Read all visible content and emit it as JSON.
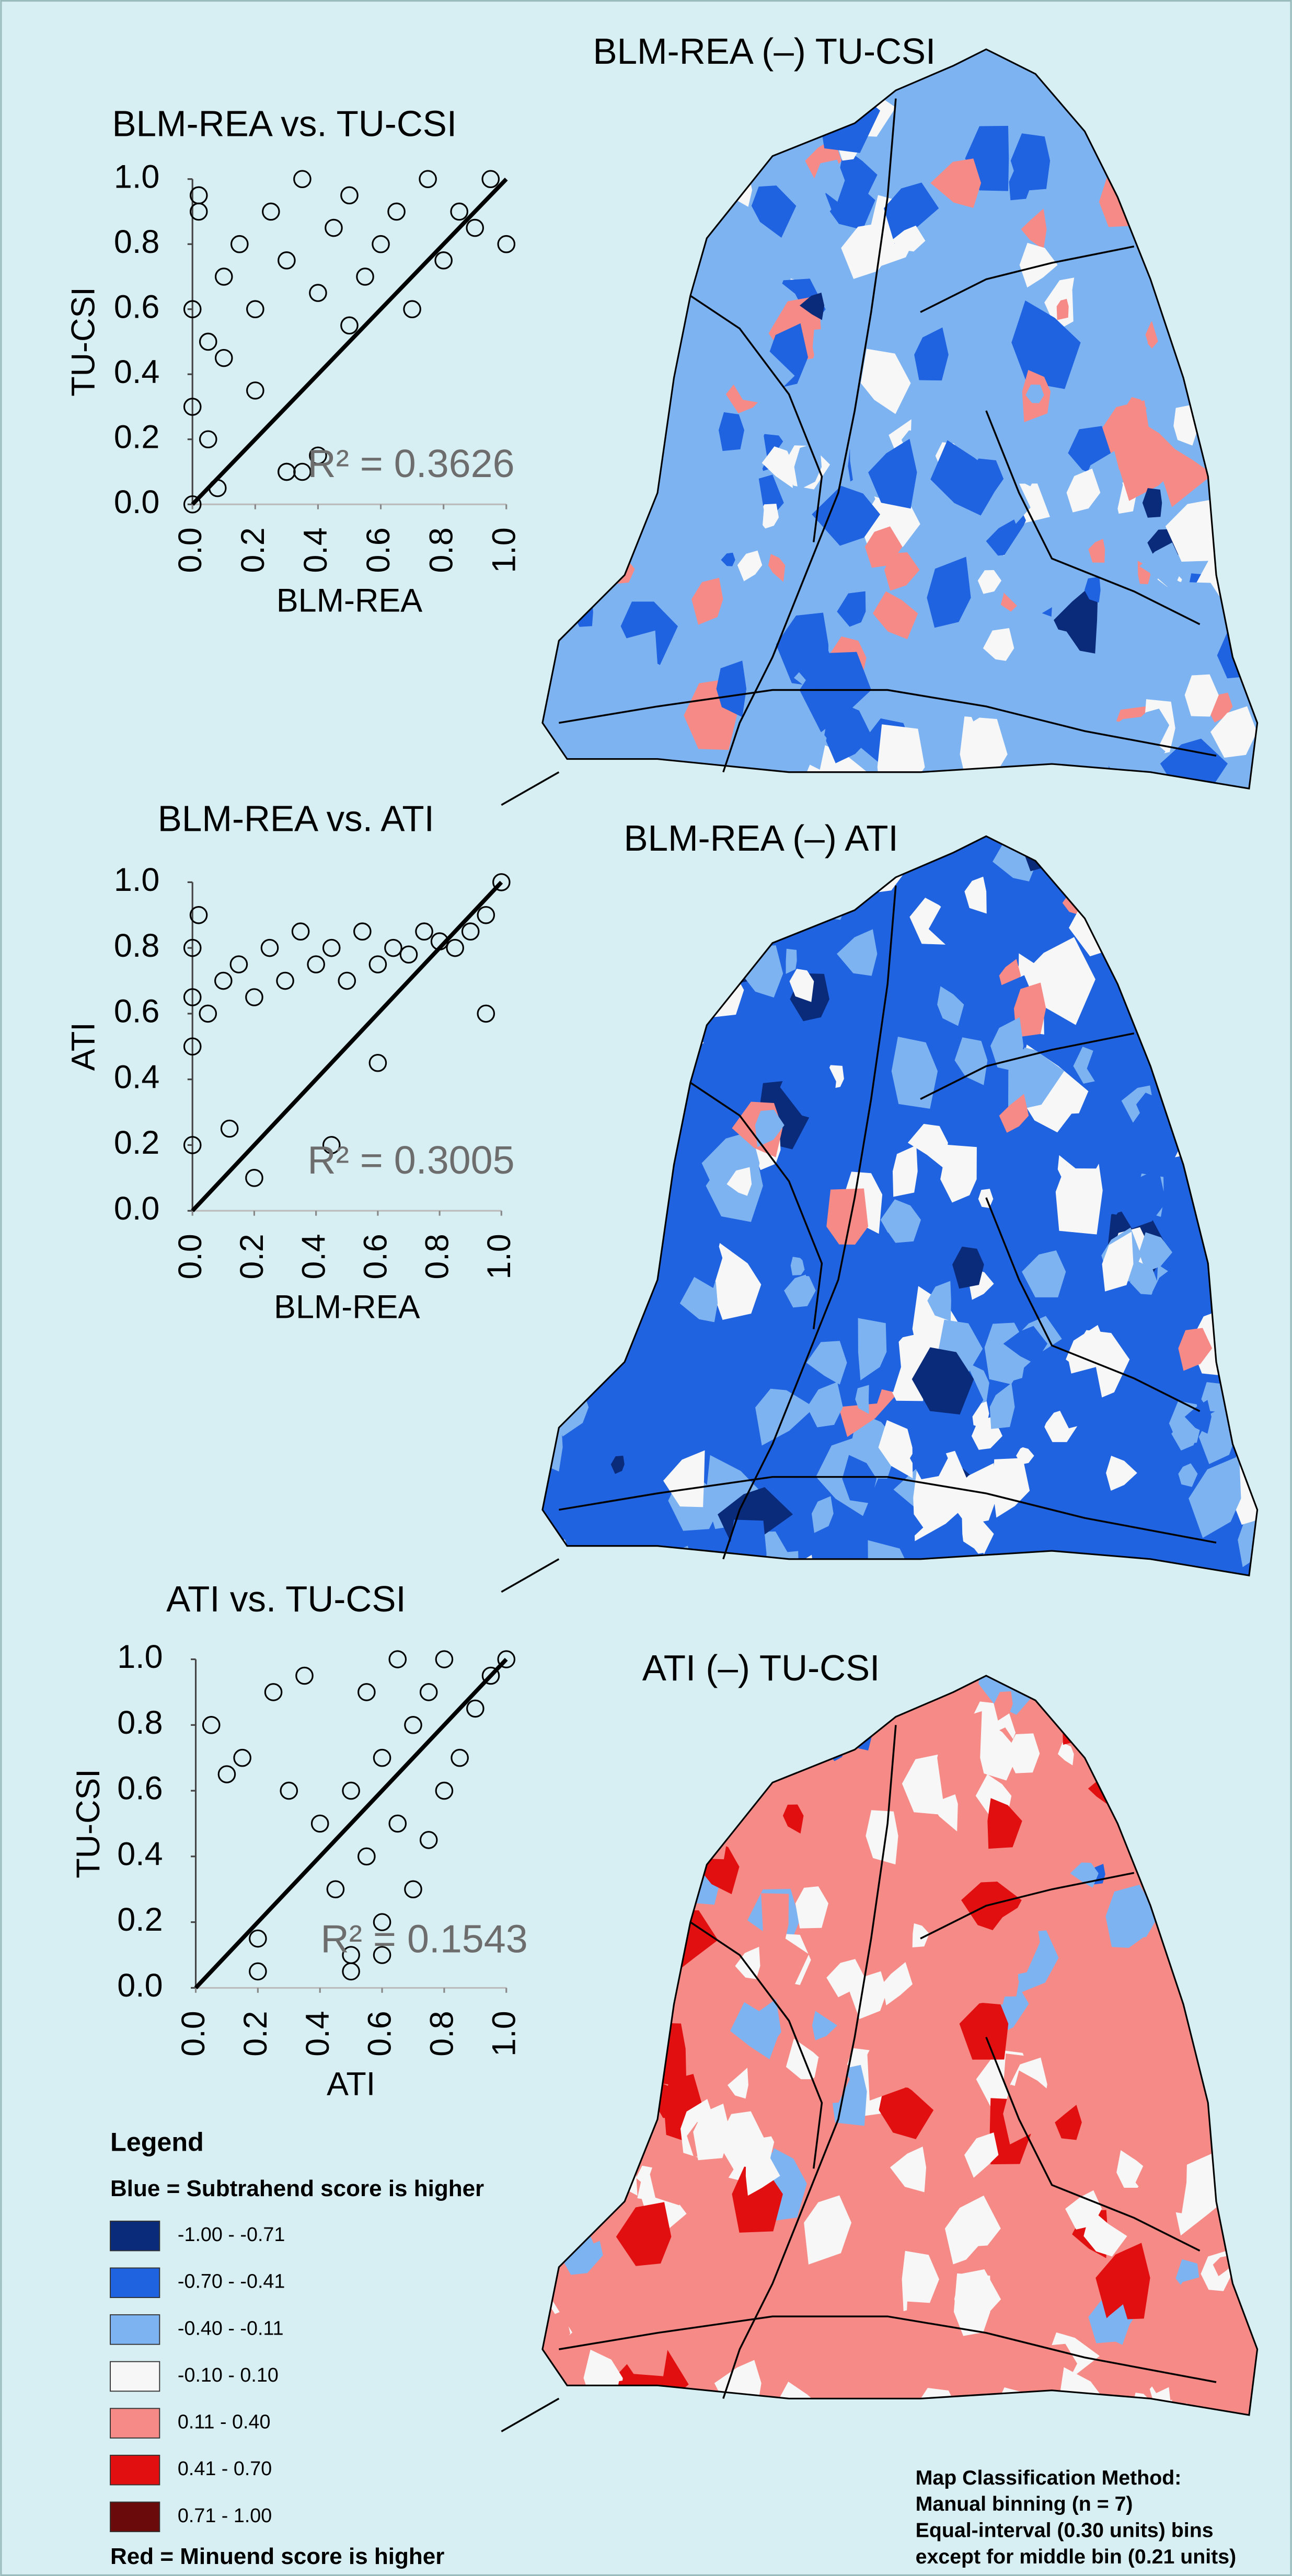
{
  "chart_data": [
    {
      "type": "scatter",
      "title": "BLM-REA vs. TU-CSI",
      "xlabel": "BLM-REA",
      "ylabel": "TU-CSI",
      "annotation": "R² = 0.3626",
      "xlim": [
        0,
        1
      ],
      "ylim": [
        0,
        1
      ],
      "xticks": [
        {
          "value": 0,
          "label": "0.0"
        },
        0.2,
        0.4,
        0.6,
        0.8,
        {
          "value": 1,
          "label": "1.0"
        }
      ],
      "yticks": [
        {
          "value": 0,
          "label": "0.0"
        },
        0.2,
        0.4,
        0.6,
        0.8,
        {
          "value": 1,
          "label": "1.0"
        }
      ],
      "diagonal": true,
      "color": "#000000",
      "x": [
        0,
        0,
        0,
        0.02,
        0.05,
        0.05,
        0.1,
        0.1,
        0.15,
        0.2,
        0.2,
        0.25,
        0.3,
        0.3,
        0.35,
        0.4,
        0.45,
        0.5,
        0.5,
        0.55,
        0.6,
        0.65,
        0.7,
        0.75,
        0.8,
        0.85,
        0.9,
        0.95,
        1.0,
        0.08,
        0.3,
        0.35,
        0.02,
        0.4
      ],
      "values": [
        0,
        0.3,
        0.6,
        0.9,
        0.5,
        0.2,
        0.7,
        0.45,
        0.8,
        0.6,
        0.35,
        0.9,
        0.75,
        0.1,
        1.0,
        0.65,
        0.85,
        0.55,
        0.95,
        0.7,
        0.8,
        0.9,
        0.6,
        1.0,
        0.75,
        0.9,
        0.85,
        1.0,
        0.8,
        0.05,
        0.1,
        0.1,
        0.95,
        0.15
      ]
    },
    {
      "type": "scatter",
      "title": "BLM-REA vs. ATI",
      "xlabel": "BLM-REA",
      "ylabel": "ATI",
      "annotation": "R² = 0.3005",
      "xlim": [
        0,
        1
      ],
      "ylim": [
        0,
        1
      ],
      "xticks": [
        {
          "value": 0,
          "label": "0.0"
        },
        0.2,
        0.4,
        0.6,
        0.8,
        {
          "value": 1,
          "label": "1.0"
        }
      ],
      "yticks": [
        {
          "value": 0,
          "label": "0.0"
        },
        0.2,
        0.4,
        0.6,
        0.8,
        {
          "value": 1,
          "label": "1.0"
        }
      ],
      "diagonal": true,
      "color": "#000000",
      "x": [
        0,
        0,
        0,
        0,
        0.02,
        0.05,
        0.1,
        0.15,
        0.2,
        0.25,
        0.3,
        0.35,
        0.4,
        0.45,
        0.5,
        0.55,
        0.6,
        0.65,
        0.7,
        0.75,
        0.8,
        0.85,
        0.9,
        0.95,
        1.0,
        0.12,
        0.2,
        0.45,
        0.6,
        0.95
      ],
      "values": [
        0.2,
        0.5,
        0.65,
        0.8,
        0.9,
        0.6,
        0.7,
        0.75,
        0.65,
        0.8,
        0.7,
        0.85,
        0.75,
        0.8,
        0.7,
        0.85,
        0.75,
        0.8,
        0.78,
        0.85,
        0.82,
        0.8,
        0.85,
        0.9,
        1.0,
        0.25,
        0.1,
        0.2,
        0.45,
        0.6
      ]
    },
    {
      "type": "scatter",
      "title": "ATI vs. TU-CSI",
      "xlabel": "ATI",
      "ylabel": "TU-CSI",
      "annotation": "R² = 0.1543",
      "xlim": [
        0,
        1
      ],
      "ylim": [
        0,
        1
      ],
      "xticks": [
        {
          "value": 0,
          "label": "0.0"
        },
        0.2,
        0.4,
        0.6,
        0.8,
        {
          "value": 1,
          "label": "1.0"
        }
      ],
      "yticks": [
        {
          "value": 0,
          "label": "0.0"
        },
        0.2,
        0.4,
        0.6,
        0.8,
        {
          "value": 1,
          "label": "1.0"
        }
      ],
      "diagonal": true,
      "color": "#000000",
      "x": [
        0.05,
        0.1,
        0.15,
        0.2,
        0.25,
        0.3,
        0.35,
        0.4,
        0.45,
        0.5,
        0.5,
        0.55,
        0.55,
        0.6,
        0.6,
        0.65,
        0.65,
        0.7,
        0.7,
        0.75,
        0.75,
        0.8,
        0.8,
        0.85,
        0.9,
        0.95,
        1.0,
        0.2,
        0.5,
        0.6
      ],
      "values": [
        0.8,
        0.65,
        0.7,
        0.05,
        0.9,
        0.6,
        0.95,
        0.5,
        0.3,
        0.1,
        0.6,
        0.4,
        0.9,
        0.2,
        0.7,
        0.5,
        1.0,
        0.3,
        0.8,
        0.45,
        0.9,
        0.6,
        1.0,
        0.7,
        0.85,
        0.95,
        1.0,
        0.15,
        0.05,
        0.1
      ]
    }
  ],
  "maps": [
    {
      "title": "BLM-REA (–) TU-CSI"
    },
    {
      "title": "BLM-REA (–) ATI"
    },
    {
      "title": "ATI (–) TU-CSI"
    }
  ],
  "legend": {
    "title": "Legend",
    "blue_note": "Blue = Subtrahend score is higher",
    "red_note": "Red = Minuend score is higher",
    "bins": [
      {
        "label": "-1.00 - -0.71",
        "color": "#0a2a7a"
      },
      {
        "label": "-0.70 - -0.41",
        "color": "#1f63e0"
      },
      {
        "label": "-0.40 - -0.11",
        "color": "#7eb3f2"
      },
      {
        "label": "-0.10 - 0.10",
        "color": "#f7f7f7"
      },
      {
        "label": "0.11 - 0.40",
        "color": "#f58a86"
      },
      {
        "label": "0.41 - 0.70",
        "color": "#e10f10"
      },
      {
        "label": "0.71 - 1.00",
        "color": "#6b0a0a"
      }
    ]
  },
  "method_note": [
    "Map Classification Method:",
    "Manual binning (n = 7)",
    "Equal-interval (0.30 units) bins",
    "except for middle bin (0.21 units)"
  ]
}
